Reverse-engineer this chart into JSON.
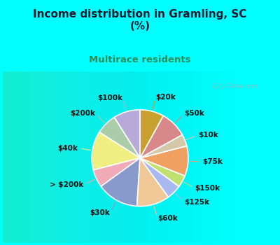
{
  "title": "Income distribution in Gramling, SC\n(%)",
  "subtitle": "Multirace residents",
  "title_color": "#1a1a2e",
  "subtitle_color": "#2e8b57",
  "background_color": "#00ffff",
  "labels": [
    "$100k",
    "$200k",
    "$40k",
    "> $200k",
    "$30k",
    "$60k",
    "$125k",
    "$150k",
    "$75k",
    "$10k",
    "$50k",
    "$20k"
  ],
  "values": [
    9,
    7,
    13,
    6,
    14,
    11,
    5,
    4,
    10,
    4,
    9,
    8
  ],
  "colors": [
    "#b8aad8",
    "#aacca8",
    "#f0ee80",
    "#f0aab8",
    "#8899cc",
    "#f0c898",
    "#a8b8f0",
    "#c0e070",
    "#f0a060",
    "#d4c8a8",
    "#d88888",
    "#c8a030"
  ],
  "label_color": "#111111",
  "label_fontsize": 7.5,
  "startangle": 90,
  "watermark": "  City-Data.com"
}
